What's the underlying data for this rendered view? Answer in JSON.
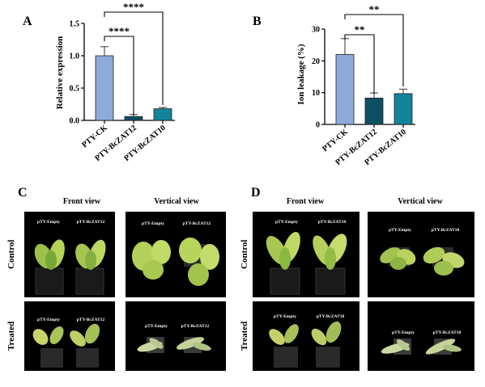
{
  "panels": {
    "a_letter": "A",
    "b_letter": "B",
    "c_letter": "C",
    "d_letter": "D"
  },
  "chart_data": [
    {
      "type": "bar",
      "ylabel": "Relative expression",
      "ylim": [
        0,
        1.5
      ],
      "yticks": [
        "0.0",
        "0.5",
        "1.0",
        "1.5"
      ],
      "categories": [
        "PTY-CK",
        "PTY-BcZAT12",
        "PTY-BcZAT10"
      ],
      "values": [
        1.0,
        0.06,
        0.18
      ],
      "errors": [
        0.14,
        0.03,
        0.02
      ],
      "colors": [
        "#8eaadb",
        "#0d4f63",
        "#12849a"
      ],
      "significance": [
        {
          "from": 0,
          "to": 1,
          "label": "****"
        },
        {
          "from": 0,
          "to": 2,
          "label": "****"
        }
      ]
    },
    {
      "type": "bar",
      "ylabel": "Ion leakage (%)",
      "ylim": [
        0,
        30
      ],
      "yticks": [
        "0",
        "10",
        "20",
        "30"
      ],
      "categories": [
        "PTY-CK",
        "PTY-BcZAT12",
        "PTY-BcZAT10"
      ],
      "values": [
        22,
        8.3,
        9.7
      ],
      "errors": [
        5.0,
        1.6,
        1.4
      ],
      "colors": [
        "#8eaadb",
        "#0d4f63",
        "#12849a"
      ],
      "significance": [
        {
          "from": 0,
          "to": 1,
          "label": "**"
        },
        {
          "from": 0,
          "to": 2,
          "label": "**"
        }
      ]
    }
  ],
  "photos": {
    "c": {
      "front_title": "Front view",
      "vertical_title": "Vertical view",
      "control_label": "Control",
      "treated_label": "Treated",
      "control_front": [
        "pTY-Empty",
        "pTY-BcZAT12"
      ],
      "control_vertical": [
        "pTY-Empty",
        "pTY-BcZAT12"
      ],
      "treated_front": [
        "pTY-Empty",
        "pTY-BcZAT12"
      ],
      "treated_vertical": [
        "pTY-Empty",
        "pTY-BcZAT12"
      ]
    },
    "d": {
      "front_title": "Front view",
      "vertical_title": "Vertical view",
      "control_label": "Control",
      "treated_label": "Treated",
      "control_front": [
        "pTY-Empty",
        "pTY-BcZAT10"
      ],
      "control_vertical": [
        "pTY-Empty",
        "pTY-BcZAT10"
      ],
      "treated_front": [
        "pTY-Empty",
        "pTY-BcZAT10"
      ],
      "treated_vertical": [
        "pTY-Empty",
        "pTY-BcZAT10"
      ]
    }
  }
}
